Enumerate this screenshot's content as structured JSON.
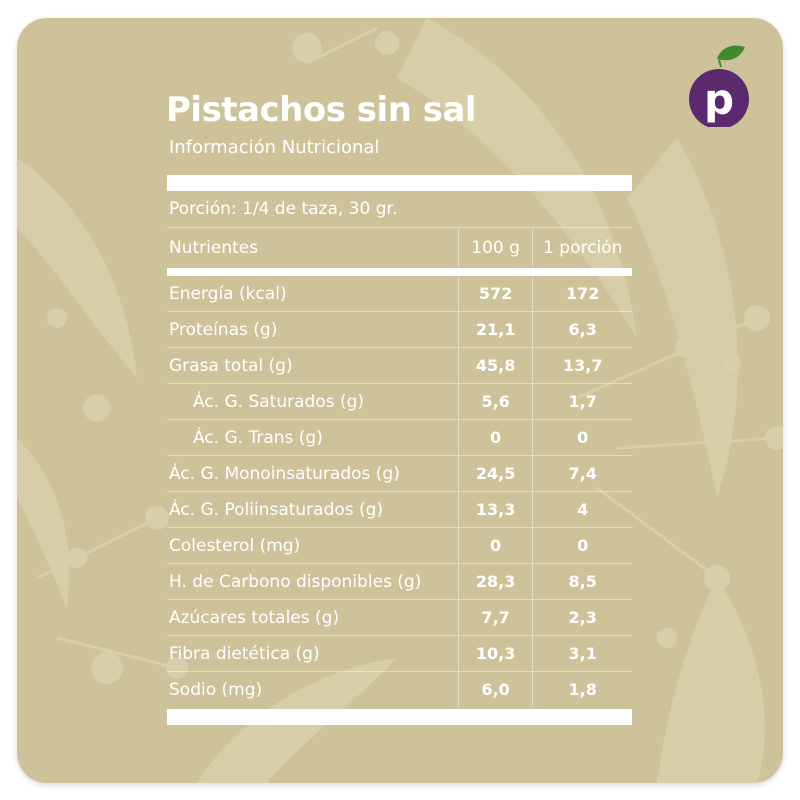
{
  "brand": {
    "logo_letter": "p",
    "logo_color": "#5b2a6e",
    "leaf_color": "#3f8a2e"
  },
  "colors": {
    "card_background": "#cdc29a",
    "text": "#ffffff"
  },
  "header": {
    "title": "Pistachos sin sal",
    "subtitle": "Información Nutricional"
  },
  "table": {
    "serving": "Porción: 1/4 de taza, 30 gr.",
    "columns": {
      "nutrient": "Nutrientes",
      "per_100g": "100 g",
      "per_portion": "1 porción"
    },
    "rows": [
      {
        "name": "Energía (kcal)",
        "per_100g": "572",
        "per_portion": "172"
      },
      {
        "name": "Proteínas (g)",
        "per_100g": "21,1",
        "per_portion": "6,3"
      },
      {
        "name": "Grasa total (g)",
        "per_100g": "45,8",
        "per_portion": "13,7"
      },
      {
        "name": "Ác. G. Saturados (g)",
        "per_100g": "5,6",
        "per_portion": "1,7"
      },
      {
        "name": "Ác. G. Trans (g)",
        "per_100g": "0",
        "per_portion": "0"
      },
      {
        "name": "Ác. G. Monoinsaturados (g)",
        "per_100g": "24,5",
        "per_portion": "7,4"
      },
      {
        "name": "Ác. G. Poliinsaturados (g)",
        "per_100g": "13,3",
        "per_portion": "4"
      },
      {
        "name": "Colesterol (mg)",
        "per_100g": "0",
        "per_portion": "0"
      },
      {
        "name": "H. de Carbono disponibles (g)",
        "per_100g": "28,3",
        "per_portion": "8,5"
      },
      {
        "name": "Azúcares totales (g)",
        "per_100g": "7,7",
        "per_portion": "2,3"
      },
      {
        "name": "Fibra dietética (g)",
        "per_100g": "10,3",
        "per_portion": "3,1"
      },
      {
        "name": "Sodio (mg)",
        "per_100g": "6,0",
        "per_portion": "1,8"
      }
    ]
  }
}
